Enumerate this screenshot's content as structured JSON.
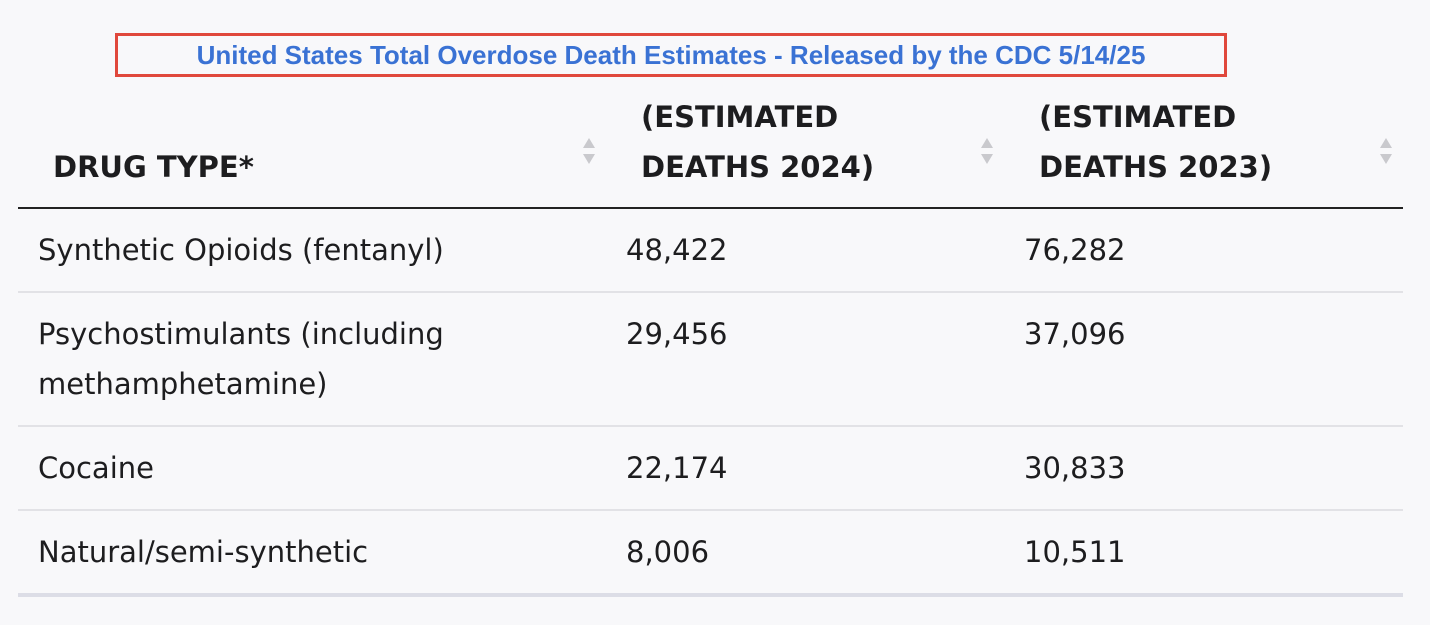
{
  "title": "United States Total Overdose Death Estimates - Released by the CDC 5/14/25",
  "table": {
    "headers": [
      "DRUG TYPE*",
      "(ESTIMATED DEATHS 2024)",
      "(ESTIMATED DEATHS 2023)"
    ],
    "rows": [
      [
        "Synthetic Opioids (fentanyl)",
        "48,422",
        "76,282"
      ],
      [
        "Psychostimulants (including methamphetamine)",
        "29,456",
        "37,096"
      ],
      [
        "Cocaine",
        "22,174",
        "30,833"
      ],
      [
        "Natural/semi-synthetic",
        "8,006",
        "10,511"
      ]
    ]
  }
}
